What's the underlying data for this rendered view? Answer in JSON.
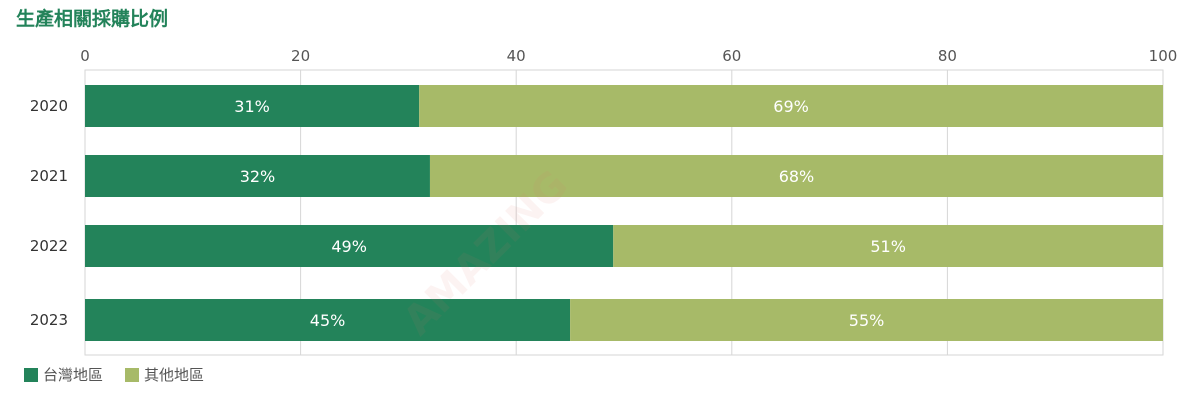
{
  "title": "生產相關採購比例",
  "colors": {
    "taiwan": "#23835a",
    "other": "#a7ba68",
    "grid": "#d6d6d6",
    "title": "#23835a"
  },
  "watermark": "AMAZING",
  "chart_data": {
    "type": "bar",
    "orientation": "horizontal",
    "stacked": true,
    "categories": [
      "2020",
      "2021",
      "2022",
      "2023"
    ],
    "series": [
      {
        "name": "台灣地區",
        "values": [
          31,
          32,
          49,
          45
        ],
        "labels": [
          "31%",
          "32%",
          "49%",
          "45%"
        ]
      },
      {
        "name": "其他地區",
        "values": [
          69,
          68,
          51,
          55
        ],
        "labels": [
          "69%",
          "68%",
          "51%",
          "55%"
        ]
      }
    ],
    "xlim": [
      0,
      100
    ],
    "xticks": [
      0,
      20,
      40,
      60,
      80,
      100
    ],
    "grid": true,
    "legend_position": "bottom-left"
  }
}
